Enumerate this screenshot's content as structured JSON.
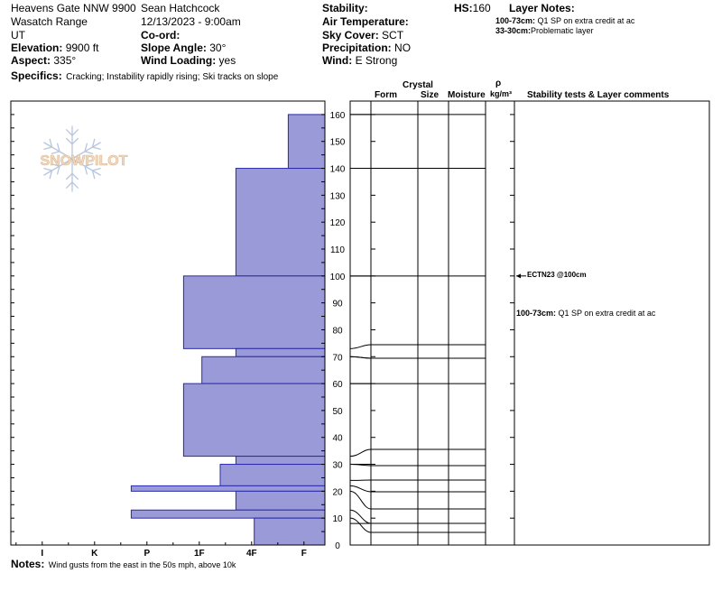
{
  "header": {
    "location": "Heavens Gate NNW 9900",
    "range": "Wasatch Range",
    "state": "UT",
    "observer": "Sean Hatchcock",
    "datetime": "12/13/2023 - 9:00am",
    "elevation_label": "Elevation:",
    "elevation_value": "9900 ft",
    "aspect_label": "Aspect:",
    "aspect_value": "335°",
    "specifics_label": "Specifics:",
    "specifics_value": "Cracking; Instability rapidly rising; Ski tracks on slope",
    "coord_label": "Co-ord:",
    "slope_label": "Slope Angle:",
    "slope_value": "30°",
    "wind_loading_label": "Wind Loading:",
    "wind_loading_value": "yes",
    "stability_label": "Stability:",
    "air_temp_label": "Air Temperature:",
    "sky_label": "Sky Cover:",
    "sky_value": "SCT",
    "precip_label": "Precipitation:",
    "precip_value": "NO",
    "wind_label": "Wind:",
    "wind_value": "E Strong",
    "hs_label": "HS:",
    "hs_value": "160",
    "layer_notes_label": "Layer Notes:",
    "layer_notes": [
      {
        "label": "100-73cm:",
        "text": "Q1 SP on extra credit at ac"
      },
      {
        "label": "33-30cm:",
        "text": "Problematic layer"
      }
    ]
  },
  "columns": {
    "crystal": "Crystal",
    "form": "Form",
    "size": "Size",
    "moisture": "Moisture",
    "rho": "ρ",
    "density_unit": "kg/m³",
    "comments": "Stability tests & Layer comments"
  },
  "logo_text": "SNOWPILOT",
  "notes_label": "Notes:",
  "notes_value": "Wind gusts from the east in the 50s mph, above 10k",
  "comments_body": {
    "test": "ECTN23 @100cm",
    "layer_label": "100-73cm:",
    "layer_text": "Q1 SP on extra credit at ac"
  },
  "chart_data": {
    "type": "bar",
    "orientation": "horizontal",
    "ylim": [
      0,
      165
    ],
    "y_ticks": [
      0,
      10,
      20,
      30,
      40,
      50,
      60,
      70,
      80,
      90,
      100,
      110,
      120,
      130,
      140,
      150,
      160
    ],
    "hardness_scale": [
      "I",
      "K",
      "P",
      "1F",
      "4F",
      "F"
    ],
    "hardness_codes": [
      6,
      5,
      4,
      3,
      2,
      1
    ],
    "colors": {
      "bar_fill": "#9a9ad8",
      "bar_stroke": "#2a2aa8"
    },
    "layers": [
      {
        "top": 160,
        "bottom": 140,
        "hardness": 0.7
      },
      {
        "top": 140,
        "bottom": 100,
        "hardness": 1.7
      },
      {
        "top": 100,
        "bottom": 73,
        "hardness": 2.7
      },
      {
        "top": 73,
        "bottom": 70,
        "hardness": 1.7
      },
      {
        "top": 70,
        "bottom": 70,
        "hardness": 1.7
      },
      {
        "top": 70,
        "bottom": 70,
        "hardness": 1.7
      },
      {
        "top": 70,
        "bottom": 60,
        "hardness": 2.35
      },
      {
        "top": 60,
        "bottom": 33,
        "hardness": 2.7
      },
      {
        "top": 33,
        "bottom": 30,
        "hardness": 1.7
      },
      {
        "top": 30,
        "bottom": 22,
        "hardness": 2.0
      },
      {
        "top": 22,
        "bottom": 20,
        "hardness": 3.7
      },
      {
        "top": 20,
        "bottom": 13,
        "hardness": 1.7
      },
      {
        "top": 13,
        "bottom": 10,
        "hardness": 3.7
      },
      {
        "top": 10,
        "bottom": 0,
        "hardness": 1.35
      }
    ],
    "layer_boundaries": [
      160,
      140,
      100,
      73,
      70,
      70,
      60,
      33,
      30,
      24,
      22,
      20,
      13,
      10,
      8,
      0
    ],
    "cross_lines": [
      160,
      140,
      100,
      60,
      30
    ],
    "test_depth": 100
  }
}
